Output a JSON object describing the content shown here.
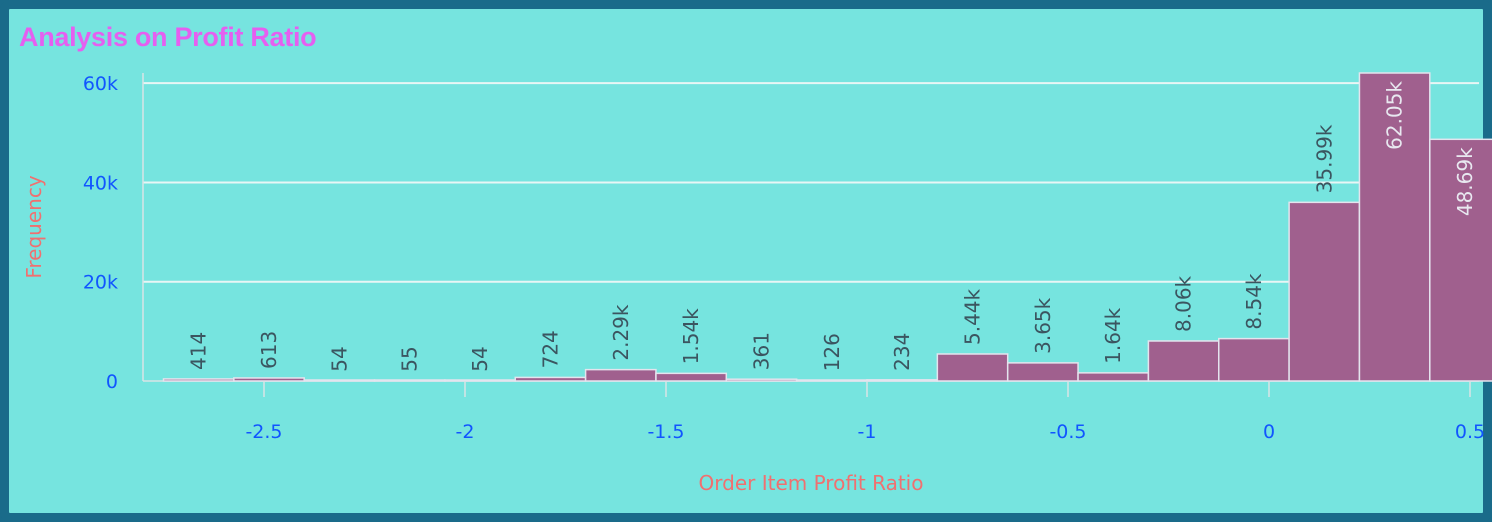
{
  "chart_data": {
    "type": "bar",
    "title": "Analysis on Profit Ratio",
    "xlabel": "Order Item Profit Ratio",
    "ylabel": "Frequency",
    "bin_start": -2.75,
    "bin_width": 0.175,
    "values": [
      414,
      613,
      54,
      55,
      54,
      724,
      2290,
      1540,
      361,
      126,
      234,
      5440,
      3650,
      1640,
      8060,
      8540,
      35990,
      62050,
      48690
    ],
    "labels": [
      "414",
      "613",
      "54",
      "55",
      "54",
      "724",
      "2.29k",
      "1.54k",
      "361",
      "126",
      "234",
      "5.44k",
      "3.65k",
      "1.64k",
      "8.06k",
      "8.54k",
      "35.99k",
      "62.05k",
      "48.69k"
    ],
    "xticks": [
      {
        "value": -2.5,
        "label": "-2.5"
      },
      {
        "value": -2,
        "label": "-2"
      },
      {
        "value": -1.5,
        "label": "-1.5"
      },
      {
        "value": -1,
        "label": "-1"
      },
      {
        "value": -0.5,
        "label": "-0.5"
      },
      {
        "value": 0,
        "label": "0"
      },
      {
        "value": 0.5,
        "label": "0.5"
      }
    ],
    "yticks": [
      {
        "value": 0,
        "label": "0"
      },
      {
        "value": 20000,
        "label": "20k"
      },
      {
        "value": 40000,
        "label": "40k"
      },
      {
        "value": 60000,
        "label": "60k"
      }
    ],
    "xlim": [
      -2.8,
      0.5
    ],
    "ylim": [
      0,
      62050
    ],
    "grid": "horizontal",
    "colors": {
      "bar": "#a0608e",
      "bar_stroke": "#e4e4ee",
      "grid": "#e8f6f5",
      "label_outside": "#3b5560",
      "label_inside": "#e8e8f0"
    }
  }
}
